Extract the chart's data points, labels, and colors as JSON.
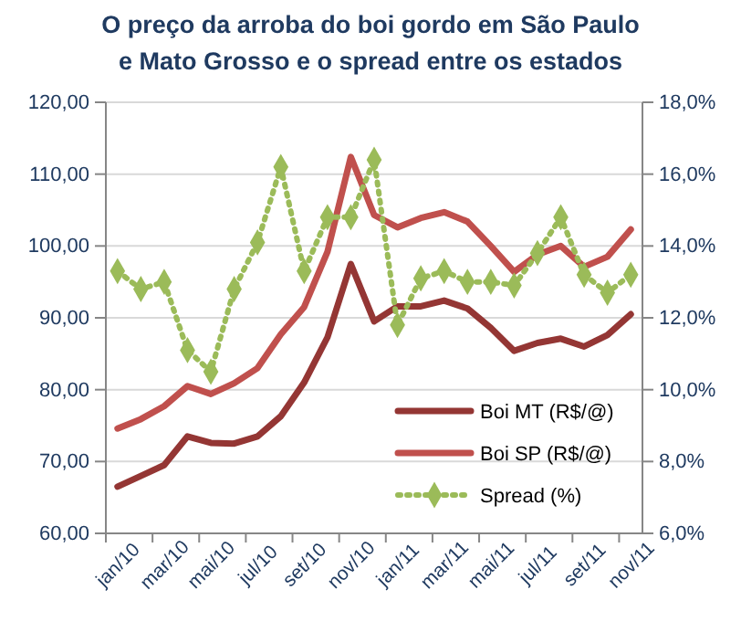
{
  "chart_data": {
    "type": "line",
    "title": "O preço da arroba do boi gordo em São Paulo e Mato Grosso e o spread entre os estados",
    "categories": [
      "jan/10",
      null,
      "mar/10",
      null,
      "mai/10",
      null,
      "jul/10",
      null,
      "set/10",
      null,
      "nov/10",
      null,
      "jan/11",
      null,
      "mar/11",
      null,
      "mai/11",
      null,
      "jul/11",
      null,
      "set/11",
      null,
      "nov/11"
    ],
    "series": [
      {
        "name": "Boi MT (R$/@)",
        "color": "#943634",
        "marker": "none",
        "line_style": "solid",
        "values": [
          66.5,
          68,
          69.5,
          73.5,
          72.6,
          72.5,
          73.5,
          76.3,
          81,
          87.3,
          97.5,
          89.5,
          91.6,
          91.6,
          92.4,
          91.3,
          88.6,
          85.4,
          86.5,
          87.1,
          86,
          87.6,
          90.5
        ]
      },
      {
        "name": "Boi SP (R$/@)",
        "color": "#c0504d",
        "marker": "none",
        "line_style": "solid",
        "values": [
          74.6,
          75.9,
          77.7,
          80.5,
          79.4,
          80.9,
          83,
          87.7,
          91.5,
          99.2,
          112.4,
          104.3,
          102.6,
          103.9,
          104.7,
          103.4,
          100,
          96.4,
          98.8,
          100,
          97.1,
          98.5,
          102.3
        ]
      },
      {
        "name": "Spread (%)",
        "color": "#9bbb59",
        "marker": "diamond",
        "line_style": "dotted",
        "axis": "y2",
        "values": [
          13.3,
          12.8,
          13,
          11.1,
          10.5,
          12.8,
          14.1,
          16.2,
          13.3,
          14.8,
          14.8,
          16.4,
          11.8,
          13.1,
          13.3,
          13,
          13,
          12.9,
          13.8,
          14.8,
          13.2,
          12.7,
          13.2
        ]
      }
    ],
    "ylim": [
      60,
      120
    ],
    "yticks": [
      {
        "value": 60,
        "label": "60,00"
      },
      {
        "value": 70,
        "label": "70,00"
      },
      {
        "value": 80,
        "label": "80,00"
      },
      {
        "value": 90,
        "label": "90,00"
      },
      {
        "value": 100,
        "label": "100,00"
      },
      {
        "value": 110,
        "label": "110,00"
      },
      {
        "value": 120,
        "label": "120,00"
      }
    ],
    "y2lim": [
      6,
      18
    ],
    "y2ticks": [
      {
        "value": 6,
        "label": "6,0%"
      },
      {
        "value": 8,
        "label": "8,0%"
      },
      {
        "value": 10,
        "label": "10,0%"
      },
      {
        "value": 12,
        "label": "12,0%"
      },
      {
        "value": 14,
        "label": "14,0%"
      },
      {
        "value": 16,
        "label": "16,0%"
      },
      {
        "value": 18,
        "label": "18,0%"
      }
    ],
    "grid": "y",
    "legend": "bottom right"
  }
}
